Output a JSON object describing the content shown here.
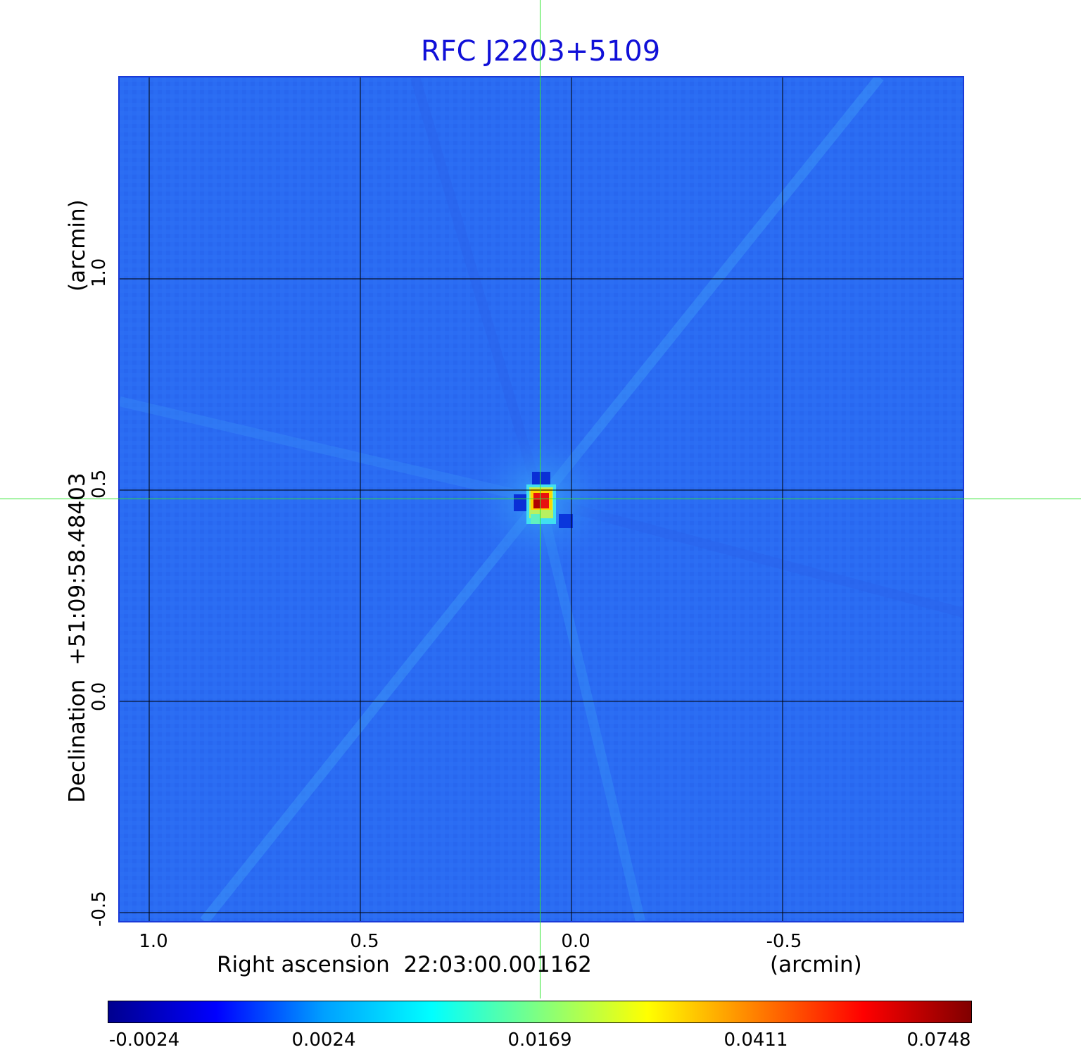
{
  "title": "RFC J2203+5109",
  "x_axis": {
    "label": "Right ascension  22:03:00.001162",
    "unit": "(arcmin)",
    "ticks": [
      "1.0",
      "0.5",
      "0.0",
      "-0.5"
    ]
  },
  "y_axis": {
    "label": "Declination  +51:09:58.48403",
    "unit": "(arcmin)",
    "ticks": [
      "-0.5",
      "0.0",
      "0.5",
      "1.0"
    ]
  },
  "colorbar": {
    "ticks": [
      "-0.0024",
      "0.0024",
      "0.0169",
      "0.0411",
      "0.0748"
    ],
    "colors": [
      "#00008f",
      "#0000ff",
      "#00a0ff",
      "#00ffff",
      "#80ff80",
      "#ffff00",
      "#ff8000",
      "#ff0000",
      "#800000"
    ]
  },
  "colors": {
    "background_map": "#2a6cf3",
    "crosshair": "#33e633",
    "title": "#1010d8"
  }
}
